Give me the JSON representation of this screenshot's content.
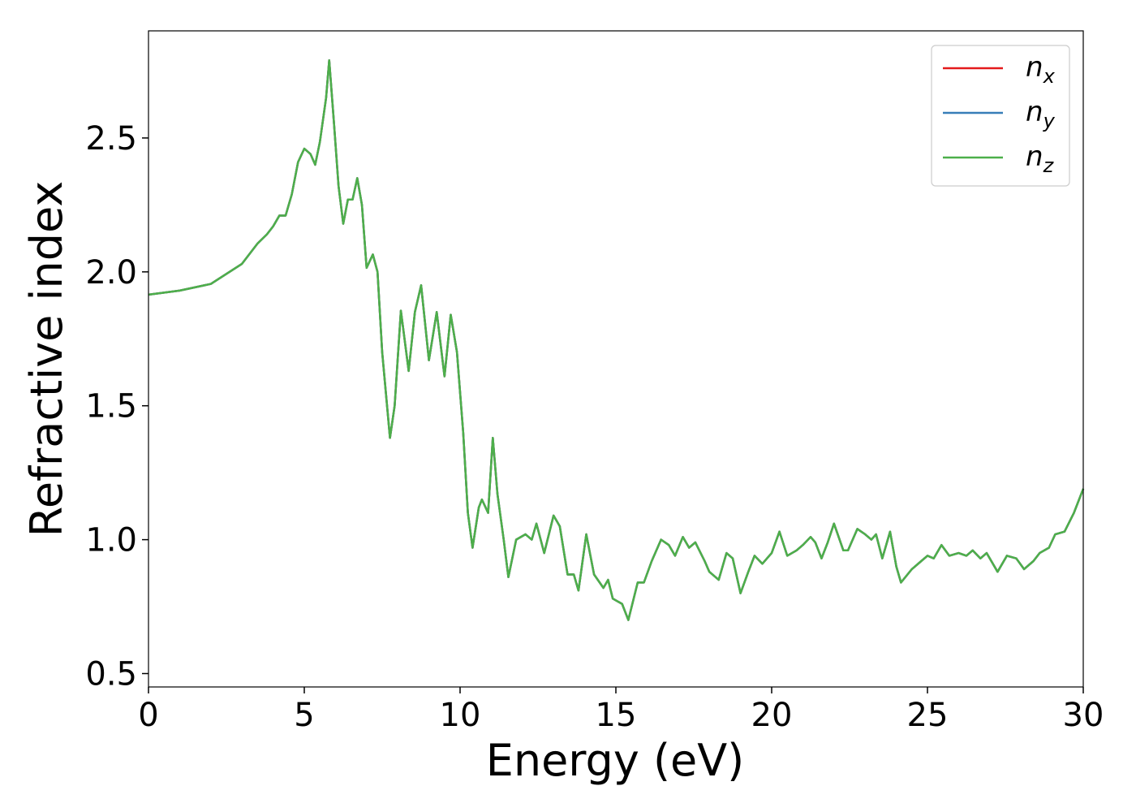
{
  "chart_data": {
    "type": "line",
    "xlabel": "Energy (eV)",
    "ylabel": "Refractive index",
    "xlim": [
      0,
      30
    ],
    "ylim": [
      0.45,
      2.9
    ],
    "xticks": [
      0,
      5,
      10,
      15,
      20,
      25,
      30
    ],
    "yticks": [
      0.5,
      {
        "value": 1.0,
        "label": "1.0"
      },
      1.5,
      {
        "value": 2.0,
        "label": "2.0"
      },
      2.5
    ],
    "grid": false,
    "legend": "upper right",
    "x": [
      0,
      1,
      2,
      3,
      3.5,
      3.8,
      4.0,
      4.2,
      4.4,
      4.6,
      4.8,
      5.0,
      5.2,
      5.35,
      5.5,
      5.7,
      5.8,
      5.95,
      6.1,
      6.25,
      6.4,
      6.55,
      6.7,
      6.85,
      7.0,
      7.2,
      7.35,
      7.5,
      7.75,
      7.9,
      8.1,
      8.35,
      8.55,
      8.75,
      9.0,
      9.25,
      9.5,
      9.7,
      9.9,
      10.1,
      10.25,
      10.4,
      10.6,
      10.7,
      10.9,
      11.05,
      11.2,
      11.4,
      11.55,
      11.8,
      12.1,
      12.3,
      12.45,
      12.7,
      13.0,
      13.2,
      13.45,
      13.65,
      13.8,
      14.05,
      14.3,
      14.6,
      14.75,
      14.9,
      15.2,
      15.4,
      15.7,
      15.9,
      16.15,
      16.45,
      16.7,
      16.9,
      17.15,
      17.35,
      17.55,
      17.85,
      18.0,
      18.3,
      18.55,
      18.75,
      19.0,
      19.25,
      19.45,
      19.7,
      20.0,
      20.25,
      20.5,
      20.8,
      21.0,
      21.25,
      21.4,
      21.6,
      21.8,
      22.0,
      22.3,
      22.45,
      22.75,
      23.0,
      23.2,
      23.35,
      23.55,
      23.8,
      24.0,
      24.15,
      24.5,
      24.8,
      25.0,
      25.2,
      25.45,
      25.7,
      26.0,
      26.25,
      26.45,
      26.7,
      26.9,
      27.25,
      27.55,
      27.85,
      28.1,
      28.4,
      28.6,
      28.9,
      29.1,
      29.4,
      29.7,
      30
    ],
    "series": [
      {
        "name": "nx",
        "color": "#e41a1c",
        "values": [
          1.915,
          1.93,
          1.955,
          2.03,
          2.106,
          2.14,
          2.17,
          2.21,
          2.21,
          2.29,
          2.41,
          2.46,
          2.44,
          2.4,
          2.485,
          2.65,
          2.79,
          2.56,
          2.32,
          2.18,
          2.27,
          2.27,
          2.35,
          2.25,
          2.015,
          2.065,
          2.0,
          1.7,
          1.38,
          1.5,
          1.855,
          1.63,
          1.85,
          1.95,
          1.67,
          1.85,
          1.61,
          1.84,
          1.7,
          1.4,
          1.1,
          0.97,
          1.12,
          1.15,
          1.1,
          1.38,
          1.17,
          1.0,
          0.86,
          1.0,
          1.02,
          1.0,
          1.06,
          0.95,
          1.09,
          1.05,
          0.87,
          0.87,
          0.81,
          1.02,
          0.87,
          0.82,
          0.85,
          0.78,
          0.76,
          0.7,
          0.84,
          0.84,
          0.92,
          1.0,
          0.98,
          0.94,
          1.01,
          0.97,
          0.99,
          0.92,
          0.88,
          0.85,
          0.95,
          0.93,
          0.8,
          0.88,
          0.94,
          0.91,
          0.95,
          1.03,
          0.94,
          0.96,
          0.98,
          1.01,
          0.99,
          0.93,
          0.99,
          1.06,
          0.96,
          0.96,
          1.04,
          1.02,
          1.0,
          1.02,
          0.93,
          1.03,
          0.9,
          0.84,
          0.89,
          0.92,
          0.94,
          0.93,
          0.98,
          0.94,
          0.95,
          0.94,
          0.96,
          0.93,
          0.95,
          0.88,
          0.94,
          0.93,
          0.89,
          0.92,
          0.95,
          0.97,
          1.02,
          1.03,
          1.1,
          1.19
        ]
      },
      {
        "name": "ny",
        "color": "#377eb8",
        "values": [
          1.915,
          1.93,
          1.955,
          2.03,
          2.106,
          2.14,
          2.17,
          2.21,
          2.21,
          2.29,
          2.41,
          2.46,
          2.44,
          2.4,
          2.485,
          2.65,
          2.79,
          2.56,
          2.32,
          2.18,
          2.27,
          2.27,
          2.35,
          2.25,
          2.015,
          2.065,
          2.0,
          1.7,
          1.38,
          1.5,
          1.855,
          1.63,
          1.85,
          1.95,
          1.67,
          1.85,
          1.61,
          1.84,
          1.7,
          1.4,
          1.1,
          0.97,
          1.12,
          1.15,
          1.1,
          1.38,
          1.17,
          1.0,
          0.86,
          1.0,
          1.02,
          1.0,
          1.06,
          0.95,
          1.09,
          1.05,
          0.87,
          0.87,
          0.81,
          1.02,
          0.87,
          0.82,
          0.85,
          0.78,
          0.76,
          0.7,
          0.84,
          0.84,
          0.92,
          1.0,
          0.98,
          0.94,
          1.01,
          0.97,
          0.99,
          0.92,
          0.88,
          0.85,
          0.95,
          0.93,
          0.8,
          0.88,
          0.94,
          0.91,
          0.95,
          1.03,
          0.94,
          0.96,
          0.98,
          1.01,
          0.99,
          0.93,
          0.99,
          1.06,
          0.96,
          0.96,
          1.04,
          1.02,
          1.0,
          1.02,
          0.93,
          1.03,
          0.9,
          0.84,
          0.89,
          0.92,
          0.94,
          0.93,
          0.98,
          0.94,
          0.95,
          0.94,
          0.96,
          0.93,
          0.95,
          0.88,
          0.94,
          0.93,
          0.89,
          0.92,
          0.95,
          0.97,
          1.02,
          1.03,
          1.1,
          1.19
        ]
      },
      {
        "name": "nz",
        "color": "#4daf4a",
        "values": [
          1.915,
          1.93,
          1.955,
          2.03,
          2.106,
          2.14,
          2.17,
          2.21,
          2.21,
          2.29,
          2.41,
          2.46,
          2.44,
          2.4,
          2.485,
          2.65,
          2.79,
          2.56,
          2.32,
          2.18,
          2.27,
          2.27,
          2.35,
          2.25,
          2.015,
          2.065,
          2.0,
          1.7,
          1.38,
          1.5,
          1.855,
          1.63,
          1.85,
          1.95,
          1.67,
          1.85,
          1.61,
          1.84,
          1.7,
          1.4,
          1.1,
          0.97,
          1.12,
          1.15,
          1.1,
          1.38,
          1.17,
          1.0,
          0.86,
          1.0,
          1.02,
          1.0,
          1.06,
          0.95,
          1.09,
          1.05,
          0.87,
          0.87,
          0.81,
          1.02,
          0.87,
          0.82,
          0.85,
          0.78,
          0.76,
          0.7,
          0.84,
          0.84,
          0.92,
          1.0,
          0.98,
          0.94,
          1.01,
          0.97,
          0.99,
          0.92,
          0.88,
          0.85,
          0.95,
          0.93,
          0.8,
          0.88,
          0.94,
          0.91,
          0.95,
          1.03,
          0.94,
          0.96,
          0.98,
          1.01,
          0.99,
          0.93,
          0.99,
          1.06,
          0.96,
          0.96,
          1.04,
          1.02,
          1.0,
          1.02,
          0.93,
          1.03,
          0.9,
          0.84,
          0.89,
          0.92,
          0.94,
          0.93,
          0.98,
          0.94,
          0.95,
          0.94,
          0.96,
          0.93,
          0.95,
          0.88,
          0.94,
          0.93,
          0.89,
          0.92,
          0.95,
          0.97,
          1.02,
          1.03,
          1.1,
          1.19
        ]
      }
    ]
  }
}
